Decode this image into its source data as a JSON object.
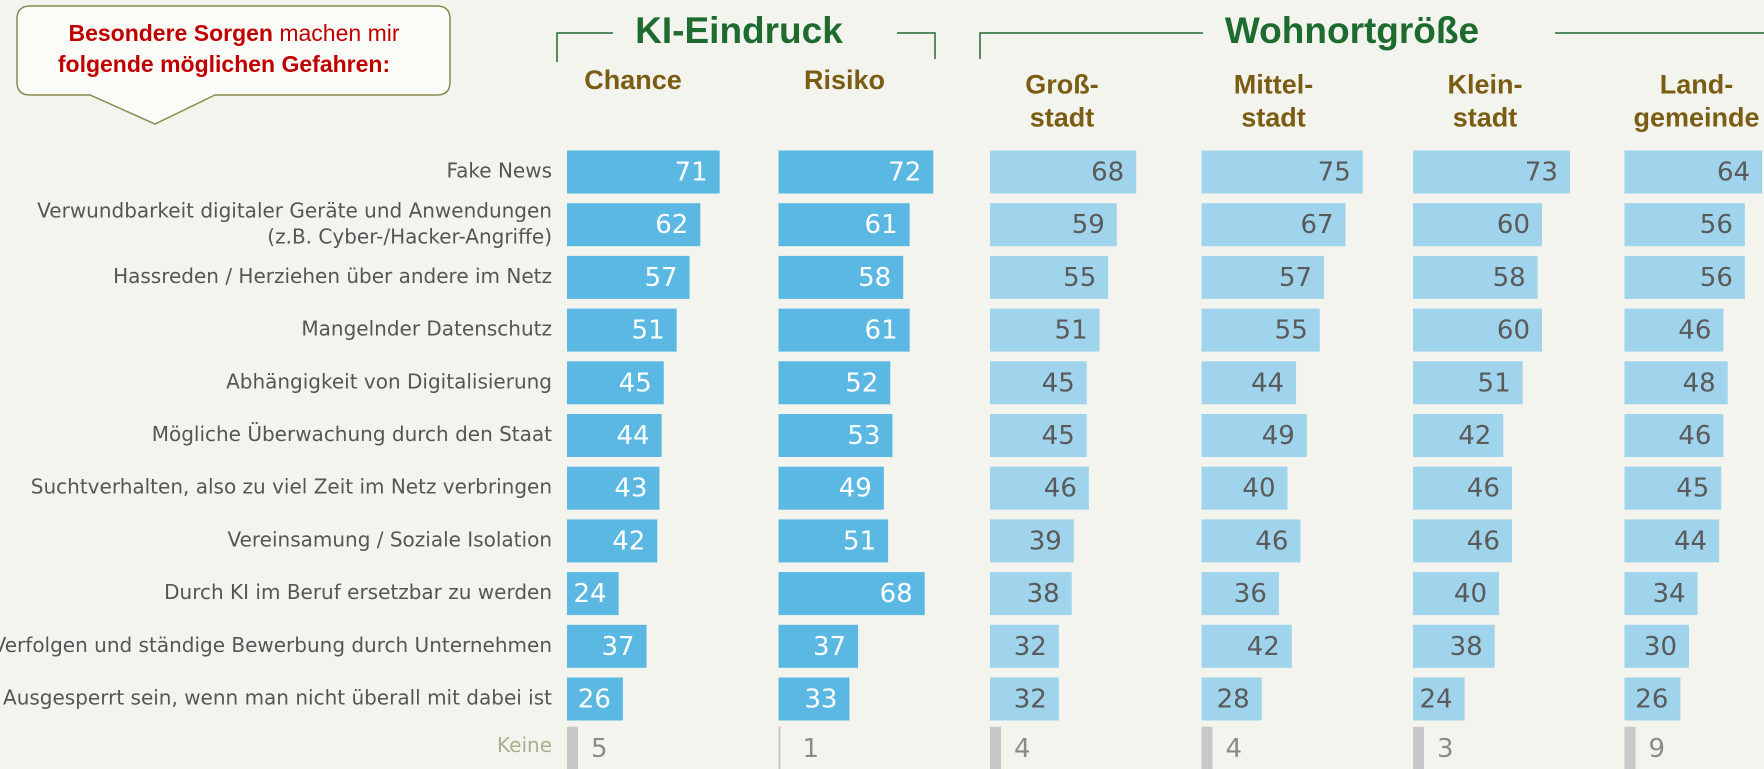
{
  "chart_data": {
    "type": "bar",
    "callout": {
      "line1_bold": "Besondere Sorgen",
      "line1_rest": " machen mir",
      "line2_bold": "folgende möglichen Gefahren:"
    },
    "groups": [
      {
        "title": "KI-Eindruck",
        "series": [
          0,
          1
        ]
      },
      {
        "title": "Wohnortgröße",
        "series": [
          2,
          3,
          4,
          5
        ]
      }
    ],
    "categories": [
      "Fake News",
      "Verwundbarkeit digitaler Geräte und Anwendungen\n(z.B. Cyber-/Hacker-Angriffe)",
      "Hassreden / Herziehen über andere im Netz",
      "Mangelnder Datenschutz",
      "Abhängigkeit von Digitalisierung",
      "Mögliche Überwachung durch den Staat",
      "Suchtverhalten, also zu viel Zeit im Netz verbringen",
      "Vereinsamung / Soziale Isolation",
      "Durch KI im Beruf ersetzbar zu werden",
      "Verfolgen und ständige Bewerbung durch Unternehmen",
      "Ausgesperrt sein, wenn man nicht überall mit dabei ist"
    ],
    "none_label": "Keine",
    "series": [
      {
        "name": "Chance",
        "color": "#5bb8e3",
        "label_color": "#ffffff",
        "values": [
          71,
          62,
          57,
          51,
          45,
          44,
          43,
          42,
          24,
          37,
          26
        ],
        "none": 5
      },
      {
        "name": "Risiko",
        "color": "#5bb8e3",
        "label_color": "#ffffff",
        "values": [
          72,
          61,
          58,
          61,
          52,
          53,
          49,
          51,
          68,
          37,
          33
        ],
        "none": 1
      },
      {
        "name": "Groß-\nstadt",
        "color": "#9fd4ec",
        "label_color": "#5a5a5a",
        "values": [
          68,
          59,
          55,
          51,
          45,
          45,
          46,
          39,
          38,
          32,
          32
        ],
        "none": 4
      },
      {
        "name": "Mittel-\nstadt",
        "color": "#9fd4ec",
        "label_color": "#5a5a5a",
        "values": [
          75,
          67,
          57,
          55,
          44,
          49,
          40,
          46,
          36,
          42,
          28
        ],
        "none": 4
      },
      {
        "name": "Klein-\nstadt",
        "color": "#9fd4ec",
        "label_color": "#5a5a5a",
        "values": [
          73,
          60,
          58,
          60,
          51,
          42,
          46,
          46,
          40,
          38,
          24
        ],
        "none": 3
      },
      {
        "name": "Land-\ngemeinde",
        "color": "#9fd4ec",
        "label_color": "#5a5a5a",
        "values": [
          64,
          56,
          56,
          46,
          48,
          46,
          45,
          44,
          34,
          30,
          26
        ],
        "none": 9
      }
    ]
  }
}
